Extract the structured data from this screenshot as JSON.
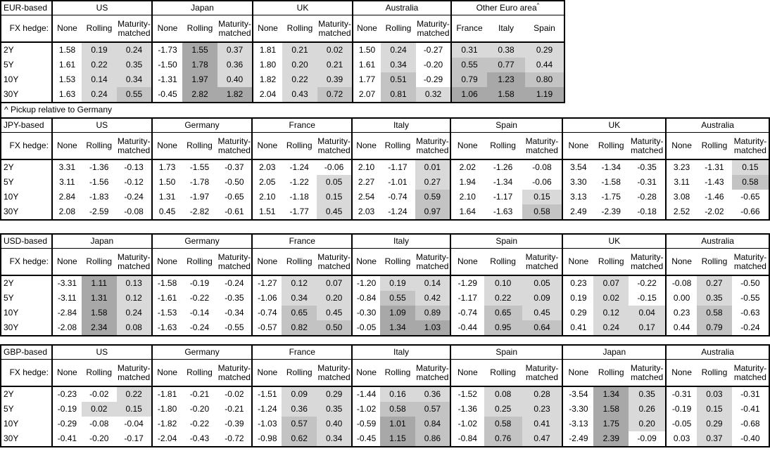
{
  "page": {
    "background": "#ffffff",
    "border_color": "#000000"
  },
  "shading_legend": {
    "none": "#ffffff",
    "light": "#d9d9d9",
    "medium": "#c3c3c3",
    "dark": "#a8a8a8",
    "rule": "hedged/pickup cells shaded by value: 0 to 0.5 light, 0.5 to 1.0 medium, 1.0+ dark; negative values and 'None' columns unshaded"
  },
  "row_header": "FX hedge:",
  "tenors": [
    "2Y",
    "5Y",
    "10Y",
    "30Y"
  ],
  "hedge_columns": [
    "None",
    "Rolling",
    "Maturity-matched"
  ],
  "footnote": "^ Pickup relative to Germany",
  "chart_data": [
    {
      "type": "table",
      "title": "EUR-based",
      "groups": [
        {
          "name": "US",
          "columns": [
            "None",
            "Rolling",
            "Maturity-matched"
          ],
          "rows": [
            [
              1.58,
              0.19,
              0.24
            ],
            [
              1.61,
              0.22,
              0.35
            ],
            [
              1.53,
              0.14,
              0.34
            ],
            [
              1.63,
              0.24,
              0.55
            ]
          ]
        },
        {
          "name": "Japan",
          "columns": [
            "None",
            "Rolling",
            "Maturity-matched"
          ],
          "rows": [
            [
              -1.73,
              1.55,
              0.37
            ],
            [
              -1.5,
              1.78,
              0.36
            ],
            [
              -1.31,
              1.97,
              0.4
            ],
            [
              -0.45,
              2.82,
              1.82
            ]
          ]
        },
        {
          "name": "UK",
          "columns": [
            "None",
            "Rolling",
            "Maturity-matched"
          ],
          "rows": [
            [
              1.81,
              0.21,
              0.02
            ],
            [
              1.8,
              0.2,
              0.21
            ],
            [
              1.82,
              0.22,
              0.39
            ],
            [
              2.04,
              0.43,
              0.72
            ]
          ]
        },
        {
          "name": "Australia",
          "columns": [
            "None",
            "Rolling",
            "Maturity-matched"
          ],
          "rows": [
            [
              1.5,
              0.24,
              -0.27
            ],
            [
              1.61,
              0.34,
              -0.2
            ],
            [
              1.77,
              0.51,
              -0.29
            ],
            [
              2.07,
              0.81,
              0.32
            ]
          ]
        },
        {
          "name": "Other Euro area",
          "superscript": "^",
          "pickup": true,
          "columns": [
            "France",
            "Italy",
            "Spain"
          ],
          "rows": [
            [
              0.31,
              0.38,
              0.29
            ],
            [
              0.55,
              0.77,
              0.44
            ],
            [
              0.79,
              1.23,
              0.8
            ],
            [
              1.06,
              1.58,
              1.19
            ]
          ]
        }
      ]
    },
    {
      "type": "table",
      "title": "JPY-based",
      "groups": [
        {
          "name": "US",
          "columns": [
            "None",
            "Rolling",
            "Maturity-matched"
          ],
          "rows": [
            [
              3.31,
              -1.36,
              -0.13
            ],
            [
              3.11,
              -1.56,
              -0.12
            ],
            [
              2.84,
              -1.83,
              -0.24
            ],
            [
              2.08,
              -2.59,
              -0.08
            ]
          ]
        },
        {
          "name": "Germany",
          "columns": [
            "None",
            "Rolling",
            "Maturity-matched"
          ],
          "rows": [
            [
              1.73,
              -1.55,
              -0.37
            ],
            [
              1.5,
              -1.78,
              -0.5
            ],
            [
              1.31,
              -1.97,
              -0.65
            ],
            [
              0.45,
              -2.82,
              -0.61
            ]
          ]
        },
        {
          "name": "France",
          "columns": [
            "None",
            "Rolling",
            "Maturity-matched"
          ],
          "rows": [
            [
              2.03,
              -1.24,
              -0.06
            ],
            [
              2.05,
              -1.22,
              0.05
            ],
            [
              2.1,
              -1.18,
              0.15
            ],
            [
              1.51,
              -1.77,
              0.45
            ]
          ]
        },
        {
          "name": "Italy",
          "columns": [
            "None",
            "Rolling",
            "Maturity-matched"
          ],
          "rows": [
            [
              2.1,
              -1.17,
              0.01
            ],
            [
              2.27,
              -1.01,
              0.27
            ],
            [
              2.54,
              -0.74,
              0.59
            ],
            [
              2.03,
              -1.24,
              0.97
            ]
          ]
        },
        {
          "name": "Spain",
          "columns": [
            "None",
            "Rolling",
            "Maturity-matched"
          ],
          "rows": [
            [
              2.02,
              -1.26,
              -0.08
            ],
            [
              1.94,
              -1.34,
              -0.06
            ],
            [
              2.1,
              -1.17,
              0.15
            ],
            [
              1.64,
              -1.63,
              0.58
            ]
          ]
        },
        {
          "name": "UK",
          "columns": [
            "None",
            "Rolling",
            "Maturity-matched"
          ],
          "rows": [
            [
              3.54,
              -1.34,
              -0.35
            ],
            [
              3.3,
              -1.58,
              -0.31
            ],
            [
              3.13,
              -1.75,
              -0.28
            ],
            [
              2.49,
              -2.39,
              -0.18
            ]
          ]
        },
        {
          "name": "Australia",
          "columns": [
            "None",
            "Rolling",
            "Maturity-matched"
          ],
          "rows": [
            [
              3.23,
              -1.31,
              0.15
            ],
            [
              3.11,
              -1.43,
              0.58
            ],
            [
              3.08,
              -1.46,
              -0.65
            ],
            [
              2.52,
              -2.02,
              -0.66
            ]
          ]
        }
      ]
    },
    {
      "type": "table",
      "title": "USD-based",
      "groups": [
        {
          "name": "Japan",
          "columns": [
            "None",
            "Rolling",
            "Maturity-matched"
          ],
          "rows": [
            [
              -3.31,
              1.11,
              0.13
            ],
            [
              -3.11,
              1.31,
              0.12
            ],
            [
              -2.84,
              1.58,
              0.24
            ],
            [
              -2.08,
              2.34,
              0.08
            ]
          ]
        },
        {
          "name": "Germany",
          "columns": [
            "None",
            "Rolling",
            "Maturity-matched"
          ],
          "rows": [
            [
              -1.58,
              -0.19,
              -0.24
            ],
            [
              -1.61,
              -0.22,
              -0.35
            ],
            [
              -1.53,
              -0.14,
              -0.34
            ],
            [
              -1.63,
              -0.24,
              -0.55
            ]
          ]
        },
        {
          "name": "France",
          "columns": [
            "None",
            "Rolling",
            "Maturity-matched"
          ],
          "rows": [
            [
              -1.27,
              0.12,
              0.07
            ],
            [
              -1.06,
              0.34,
              0.2
            ],
            [
              -0.74,
              0.65,
              0.45
            ],
            [
              -0.57,
              0.82,
              0.5
            ]
          ]
        },
        {
          "name": "Italy",
          "columns": [
            "None",
            "Rolling",
            "Maturity-matched"
          ],
          "rows": [
            [
              -1.2,
              0.19,
              0.14
            ],
            [
              -0.84,
              0.55,
              0.42
            ],
            [
              -0.3,
              1.09,
              0.89
            ],
            [
              -0.05,
              1.34,
              1.03
            ]
          ]
        },
        {
          "name": "Spain",
          "columns": [
            "None",
            "Rolling",
            "Maturity-matched"
          ],
          "rows": [
            [
              -1.29,
              0.1,
              0.05
            ],
            [
              -1.17,
              0.22,
              0.09
            ],
            [
              -0.74,
              0.65,
              0.45
            ],
            [
              -0.44,
              0.95,
              0.64
            ]
          ]
        },
        {
          "name": "UK",
          "columns": [
            "None",
            "Rolling",
            "Maturity-matched"
          ],
          "rows": [
            [
              0.23,
              0.07,
              -0.22
            ],
            [
              0.19,
              0.02,
              -0.15
            ],
            [
              0.29,
              0.12,
              0.04
            ],
            [
              0.41,
              0.24,
              0.17
            ]
          ]
        },
        {
          "name": "Australia",
          "columns": [
            "None",
            "Rolling",
            "Maturity-matched"
          ],
          "rows": [
            [
              -0.08,
              0.27,
              -0.5
            ],
            [
              0.0,
              0.35,
              -0.55
            ],
            [
              0.23,
              0.58,
              -0.63
            ],
            [
              0.44,
              0.79,
              -0.24
            ]
          ]
        }
      ]
    },
    {
      "type": "table",
      "title": "GBP-based",
      "groups": [
        {
          "name": "US",
          "columns": [
            "None",
            "Rolling",
            "Maturity-matched"
          ],
          "rows": [
            [
              -0.23,
              -0.02,
              0.22
            ],
            [
              -0.19,
              0.02,
              0.15
            ],
            [
              -0.29,
              -0.08,
              -0.04
            ],
            [
              -0.41,
              -0.2,
              -0.17
            ]
          ]
        },
        {
          "name": "Germany",
          "columns": [
            "None",
            "Rolling",
            "Maturity-matched"
          ],
          "rows": [
            [
              -1.81,
              -0.21,
              -0.02
            ],
            [
              -1.8,
              -0.2,
              -0.21
            ],
            [
              -1.82,
              -0.22,
              -0.39
            ],
            [
              -2.04,
              -0.43,
              -0.72
            ]
          ]
        },
        {
          "name": "France",
          "columns": [
            "None",
            "Rolling",
            "Maturity-matched"
          ],
          "rows": [
            [
              -1.51,
              0.09,
              0.29
            ],
            [
              -1.24,
              0.36,
              0.35
            ],
            [
              -1.03,
              0.57,
              0.4
            ],
            [
              -0.98,
              0.62,
              0.34
            ]
          ]
        },
        {
          "name": "Italy",
          "columns": [
            "None",
            "Rolling",
            "Maturity-matched"
          ],
          "rows": [
            [
              -1.44,
              0.16,
              0.36
            ],
            [
              -1.02,
              0.58,
              0.57
            ],
            [
              -0.59,
              1.01,
              0.84
            ],
            [
              -0.45,
              1.15,
              0.86
            ]
          ]
        },
        {
          "name": "Spain",
          "columns": [
            "None",
            "Rolling",
            "Maturity-matched"
          ],
          "rows": [
            [
              -1.52,
              0.08,
              0.28
            ],
            [
              -1.36,
              0.25,
              0.23
            ],
            [
              -1.02,
              0.58,
              0.41
            ],
            [
              -0.84,
              0.76,
              0.47
            ]
          ]
        },
        {
          "name": "Japan",
          "columns": [
            "None",
            "Rolling",
            "Maturity-matched"
          ],
          "rows": [
            [
              -3.54,
              1.34,
              0.35
            ],
            [
              -3.3,
              1.58,
              0.26
            ],
            [
              -3.13,
              1.75,
              0.2
            ],
            [
              -2.49,
              2.39,
              -0.09
            ]
          ]
        },
        {
          "name": "Australia",
          "columns": [
            "None",
            "Rolling",
            "Maturity-matched"
          ],
          "rows": [
            [
              -0.31,
              0.03,
              -0.31
            ],
            [
              -0.19,
              0.15,
              -0.41
            ],
            [
              -0.05,
              0.29,
              -0.68
            ],
            [
              0.03,
              0.37,
              -0.4
            ]
          ]
        }
      ]
    }
  ]
}
